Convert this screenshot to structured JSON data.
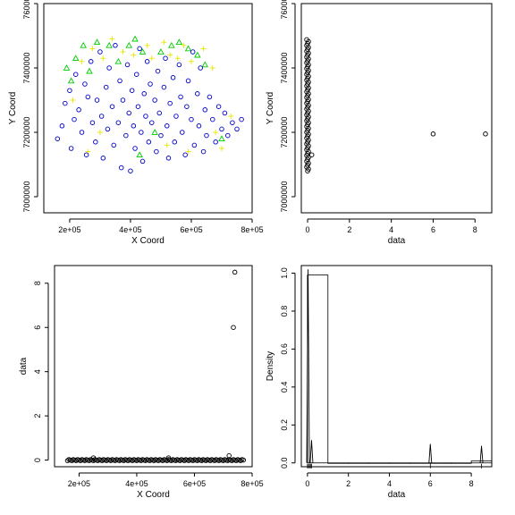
{
  "chart_data": [
    {
      "id": "map",
      "type": "scatter",
      "xlabel": "X Coord",
      "ylabel": "Y Coord",
      "xlim": [
        115000,
        800000
      ],
      "ylim": [
        6950000,
        7600000
      ],
      "xticks": [
        200000,
        400000,
        600000,
        800000
      ],
      "xtick_labels": [
        "2e+05",
        "4e+05",
        "6e+05",
        "8e+05"
      ],
      "yticks": [
        7000000,
        7200000,
        7400000,
        7600000
      ],
      "ytick_labels": [
        "7000000",
        "7200000",
        "7400000",
        "7600000"
      ],
      "series": [
        {
          "marker": "circle",
          "color": "#0000cc",
          "points": [
            [
              160000,
              7180000
            ],
            [
              175000,
              7220000
            ],
            [
              185000,
              7290000
            ],
            [
              200000,
              7330000
            ],
            [
              205000,
              7150000
            ],
            [
              215000,
              7240000
            ],
            [
              220000,
              7380000
            ],
            [
              230000,
              7270000
            ],
            [
              240000,
              7200000
            ],
            [
              250000,
              7350000
            ],
            [
              255000,
              7130000
            ],
            [
              260000,
              7310000
            ],
            [
              270000,
              7420000
            ],
            [
              275000,
              7230000
            ],
            [
              285000,
              7170000
            ],
            [
              290000,
              7300000
            ],
            [
              300000,
              7450000
            ],
            [
              305000,
              7250000
            ],
            [
              310000,
              7120000
            ],
            [
              320000,
              7340000
            ],
            [
              325000,
              7210000
            ],
            [
              330000,
              7400000
            ],
            [
              340000,
              7280000
            ],
            [
              345000,
              7160000
            ],
            [
              350000,
              7470000
            ],
            [
              360000,
              7230000
            ],
            [
              365000,
              7360000
            ],
            [
              370000,
              7090000
            ],
            [
              375000,
              7300000
            ],
            [
              385000,
              7190000
            ],
            [
              390000,
              7410000
            ],
            [
              395000,
              7260000
            ],
            [
              400000,
              7080000
            ],
            [
              405000,
              7330000
            ],
            [
              410000,
              7220000
            ],
            [
              415000,
              7150000
            ],
            [
              420000,
              7380000
            ],
            [
              425000,
              7280000
            ],
            [
              430000,
              7460000
            ],
            [
              435000,
              7200000
            ],
            [
              440000,
              7110000
            ],
            [
              445000,
              7320000
            ],
            [
              450000,
              7250000
            ],
            [
              455000,
              7420000
            ],
            [
              460000,
              7170000
            ],
            [
              465000,
              7350000
            ],
            [
              470000,
              7230000
            ],
            [
              480000,
              7300000
            ],
            [
              485000,
              7140000
            ],
            [
              490000,
              7390000
            ],
            [
              495000,
              7260000
            ],
            [
              500000,
              7190000
            ],
            [
              510000,
              7340000
            ],
            [
              515000,
              7430000
            ],
            [
              520000,
              7220000
            ],
            [
              525000,
              7120000
            ],
            [
              530000,
              7290000
            ],
            [
              540000,
              7370000
            ],
            [
              545000,
              7170000
            ],
            [
              550000,
              7250000
            ],
            [
              560000,
              7410000
            ],
            [
              565000,
              7310000
            ],
            [
              570000,
              7200000
            ],
            [
              580000,
              7130000
            ],
            [
              585000,
              7280000
            ],
            [
              590000,
              7360000
            ],
            [
              600000,
              7240000
            ],
            [
              605000,
              7450000
            ],
            [
              610000,
              7160000
            ],
            [
              620000,
              7320000
            ],
            [
              625000,
              7220000
            ],
            [
              630000,
              7400000
            ],
            [
              640000,
              7140000
            ],
            [
              645000,
              7270000
            ],
            [
              650000,
              7190000
            ],
            [
              660000,
              7310000
            ],
            [
              670000,
              7240000
            ],
            [
              680000,
              7170000
            ],
            [
              690000,
              7280000
            ],
            [
              700000,
              7210000
            ],
            [
              710000,
              7260000
            ],
            [
              720000,
              7190000
            ],
            [
              735000,
              7230000
            ],
            [
              750000,
              7210000
            ],
            [
              765000,
              7240000
            ]
          ]
        },
        {
          "marker": "triangle",
          "color": "#00cc00",
          "points": [
            [
              190000,
              7400000
            ],
            [
              205000,
              7360000
            ],
            [
              220000,
              7430000
            ],
            [
              245000,
              7470000
            ],
            [
              265000,
              7390000
            ],
            [
              290000,
              7480000
            ],
            [
              330000,
              7470000
            ],
            [
              360000,
              7420000
            ],
            [
              395000,
              7470000
            ],
            [
              415000,
              7490000
            ],
            [
              440000,
              7450000
            ],
            [
              500000,
              7450000
            ],
            [
              535000,
              7470000
            ],
            [
              560000,
              7480000
            ],
            [
              590000,
              7460000
            ],
            [
              620000,
              7440000
            ],
            [
              645000,
              7410000
            ],
            [
              700000,
              7180000
            ],
            [
              480000,
              7200000
            ],
            [
              430000,
              7130000
            ]
          ]
        },
        {
          "marker": "plus",
          "color": "#e6e600",
          "points": [
            [
              210000,
              7300000
            ],
            [
              240000,
              7420000
            ],
            [
              275000,
              7460000
            ],
            [
              310000,
              7430000
            ],
            [
              340000,
              7490000
            ],
            [
              375000,
              7450000
            ],
            [
              410000,
              7440000
            ],
            [
              455000,
              7470000
            ],
            [
              470000,
              7430000
            ],
            [
              510000,
              7480000
            ],
            [
              530000,
              7440000
            ],
            [
              555000,
              7430000
            ],
            [
              575000,
              7470000
            ],
            [
              600000,
              7420000
            ],
            [
              640000,
              7460000
            ],
            [
              670000,
              7400000
            ],
            [
              680000,
              7200000
            ],
            [
              700000,
              7150000
            ],
            [
              590000,
              7140000
            ],
            [
              520000,
              7160000
            ],
            [
              300000,
              7200000
            ],
            [
              260000,
              7140000
            ],
            [
              730000,
              7250000
            ]
          ]
        }
      ]
    },
    {
      "id": "data-vs-y",
      "type": "scatter",
      "xlabel": "data",
      "ylabel": "Y Coord",
      "xlim": [
        -0.3,
        8.8
      ],
      "ylim": [
        6950000,
        7600000
      ],
      "xticks": [
        0,
        2,
        4,
        6,
        8
      ],
      "xtick_labels": [
        "0",
        "2",
        "4",
        "6",
        "8"
      ],
      "yticks": [
        7000000,
        7200000,
        7400000,
        7600000
      ],
      "ytick_labels": [
        "7000000",
        "7200000",
        "7400000",
        "7600000"
      ],
      "points": [
        [
          6,
          7195000
        ],
        [
          8.5,
          7195000
        ],
        [
          0.2,
          7130000
        ]
      ]
    },
    {
      "id": "data-vs-x",
      "type": "scatter",
      "xlabel": "X Coord",
      "ylabel": "data",
      "xlim": [
        115000,
        800000
      ],
      "ylim": [
        -0.3,
        8.8
      ],
      "xticks": [
        200000,
        400000,
        600000,
        800000
      ],
      "xtick_labels": [
        "2e+05",
        "4e+05",
        "6e+05",
        "8e+05"
      ],
      "yticks": [
        0,
        2,
        4,
        6,
        8
      ],
      "ytick_labels": [
        "0",
        "2",
        "4",
        "6",
        "8"
      ],
      "points": [
        [
          735000,
          6
        ],
        [
          740000,
          8.5
        ],
        [
          720000,
          0.2
        ],
        [
          250000,
          0.1
        ],
        [
          510000,
          0.1
        ]
      ]
    },
    {
      "id": "histogram",
      "type": "bar",
      "xlabel": "data",
      "ylabel": "Density",
      "xlim": [
        -0.3,
        9.0
      ],
      "ylim": [
        -0.02,
        1.04
      ],
      "xticks": [
        0,
        2,
        4,
        6,
        8
      ],
      "xtick_labels": [
        "0",
        "2",
        "4",
        "6",
        "8"
      ],
      "yticks": [
        0.0,
        0.2,
        0.4,
        0.6,
        0.8,
        1.0
      ],
      "ytick_labels": [
        "0.0",
        "0.2",
        "0.4",
        "0.6",
        "0.8",
        "1.0"
      ],
      "bins": [
        [
          0,
          1,
          0.99
        ],
        [
          1,
          2,
          0
        ],
        [
          2,
          3,
          0
        ],
        [
          3,
          4,
          0
        ],
        [
          4,
          5,
          0
        ],
        [
          5,
          6,
          0
        ],
        [
          6,
          7,
          0
        ],
        [
          7,
          8,
          0
        ],
        [
          8,
          9,
          0.01
        ]
      ],
      "density_spikes": [
        [
          0.03,
          1.02
        ],
        [
          0.2,
          0.12
        ],
        [
          6,
          0.1
        ],
        [
          8.5,
          0.09
        ]
      ]
    }
  ]
}
